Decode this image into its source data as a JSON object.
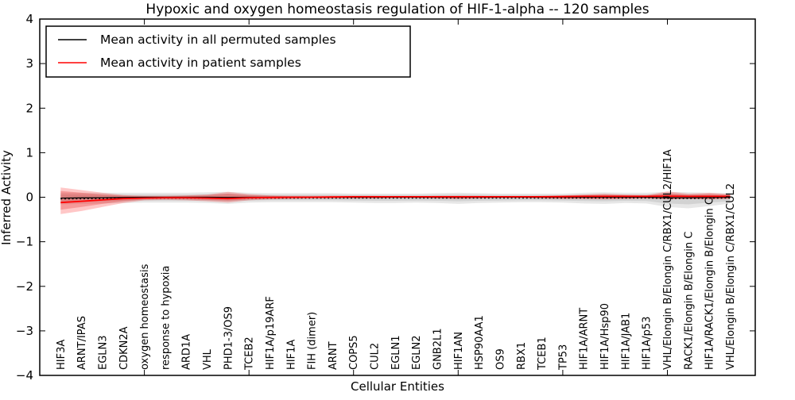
{
  "chart_data": {
    "type": "line",
    "title": "Hypoxic and oxygen homeostasis regulation of HIF-1-alpha -- 120 samples",
    "xlabel": "Cellular Entities",
    "ylabel": "Inferred Activity",
    "ylim": [
      -4,
      4
    ],
    "xlim": [
      0,
      34.2
    ],
    "grid": false,
    "y_tick_labels": [
      "4",
      "3",
      "2",
      "1",
      "0",
      "−1",
      "−2",
      "−3",
      "−4"
    ],
    "y_tick_values": [
      4,
      3,
      2,
      1,
      0,
      -1,
      -2,
      -3,
      -4
    ],
    "x_tick_positions": [
      5,
      10,
      15,
      20,
      25,
      30
    ],
    "legend": {
      "position": "upper left",
      "entries": [
        {
          "label": "Mean activity in all permuted samples",
          "color": "#000000"
        },
        {
          "label": "Mean activity in patient samples",
          "color": "#ff0000"
        }
      ]
    },
    "categories": [
      "HIF3A",
      "ARNT/IPAS",
      "EGLN3",
      "CDKN2A",
      "oxygen homeostasis",
      "response to hypoxia",
      "ARD1A",
      "VHL",
      "PHD1-3/OS9",
      "TCEB2",
      "HIF1A/p19ARF",
      "HIF1A",
      "FIH (dimer)",
      "ARNT",
      "COPS5",
      "CUL2",
      "EGLN1",
      "EGLN2",
      "GNB2L1",
      "HIF1AN",
      "HSP90AA1",
      "OS9",
      "RBX1",
      "TCEB1",
      "TP53",
      "HIF1A/ARNT",
      "HIF1A/Hsp90",
      "HIF1A/JAB1",
      "HIF1A/p53",
      "VHL/Elongin B/Elongin C/RBX1/CUL2/HIF1A",
      "RACK1/Elongin B/Elongin C",
      "HIF1A/RACK1/Elongin B/Elongin C",
      "VHL/Elongin B/Elongin C/RBX1/CUL2"
    ],
    "series": [
      {
        "name": "Mean activity in all permuted samples",
        "color": "#000000",
        "style": "solid+dotted",
        "values": [
          -0.02,
          -0.015,
          -0.01,
          -0.005,
          0,
          0,
          0,
          0,
          -0.005,
          0,
          0,
          0,
          0,
          0,
          0,
          0,
          0,
          0,
          0,
          0,
          0,
          0,
          0,
          0,
          0,
          0,
          0,
          0,
          0,
          -0.01,
          -0.01,
          -0.005,
          0
        ]
      },
      {
        "name": "Mean activity in patient samples",
        "color": "#ff0000",
        "style": "solid",
        "values": [
          -0.12,
          -0.09,
          -0.06,
          -0.03,
          -0.02,
          -0.01,
          -0.01,
          -0.02,
          -0.03,
          -0.01,
          -0.005,
          0,
          0,
          0.005,
          0.01,
          0.01,
          0.01,
          0.01,
          0.01,
          0.01,
          0.01,
          0.01,
          0.01,
          0.01,
          0.015,
          0.02,
          0.02,
          0.02,
          0.02,
          0.025,
          0.02,
          0.02,
          0.02
        ]
      }
    ],
    "bands": [
      {
        "name": "permuted-outer-band",
        "color": "#555555",
        "opacity": 0.14,
        "top": [
          0.1,
          0.1,
          0.1,
          0.1,
          0.1,
          0.1,
          0.1,
          0.11,
          0.12,
          0.1,
          0.09,
          0.09,
          0.09,
          0.09,
          0.08,
          0.08,
          0.08,
          0.08,
          0.09,
          0.1,
          0.09,
          0.08,
          0.08,
          0.08,
          0.08,
          0.1,
          0.11,
          0.1,
          0.1,
          0.12,
          0.11,
          0.1,
          0.09
        ],
        "bottom": [
          -0.16,
          -0.15,
          -0.14,
          -0.13,
          -0.12,
          -0.12,
          -0.12,
          -0.13,
          -0.15,
          -0.12,
          -0.11,
          -0.11,
          -0.11,
          -0.11,
          -0.12,
          -0.13,
          -0.13,
          -0.12,
          -0.13,
          -0.15,
          -0.13,
          -0.12,
          -0.11,
          -0.11,
          -0.12,
          -0.14,
          -0.15,
          -0.13,
          -0.14,
          -0.22,
          -0.25,
          -0.2,
          -0.14
        ]
      },
      {
        "name": "permuted-inner-band",
        "color": "#555555",
        "opacity": 0.14,
        "top": [
          0.06,
          0.06,
          0.06,
          0.06,
          0.06,
          0.06,
          0.06,
          0.07,
          0.08,
          0.06,
          0.055,
          0.055,
          0.055,
          0.055,
          0.05,
          0.05,
          0.05,
          0.05,
          0.055,
          0.06,
          0.055,
          0.05,
          0.05,
          0.05,
          0.05,
          0.06,
          0.07,
          0.06,
          0.06,
          0.08,
          0.07,
          0.06,
          0.055
        ],
        "bottom": [
          -0.1,
          -0.09,
          -0.085,
          -0.08,
          -0.075,
          -0.075,
          -0.075,
          -0.08,
          -0.09,
          -0.075,
          -0.07,
          -0.07,
          -0.07,
          -0.07,
          -0.075,
          -0.08,
          -0.08,
          -0.075,
          -0.08,
          -0.09,
          -0.08,
          -0.075,
          -0.07,
          -0.07,
          -0.075,
          -0.085,
          -0.09,
          -0.08,
          -0.085,
          -0.14,
          -0.16,
          -0.12,
          -0.09
        ]
      },
      {
        "name": "patient-outer-band",
        "color": "#ff0000",
        "opacity": 0.22,
        "top": [
          0.22,
          0.16,
          0.1,
          0.05,
          0.03,
          0.03,
          0.04,
          0.06,
          0.12,
          0.07,
          0.04,
          0.03,
          0.03,
          0.03,
          0.03,
          0.03,
          0.02,
          0.02,
          0.03,
          0.03,
          0.03,
          0.02,
          0.02,
          0.03,
          0.04,
          0.06,
          0.08,
          0.06,
          0.05,
          0.13,
          0.08,
          0.1,
          0.07
        ],
        "bottom": [
          -0.38,
          -0.31,
          -0.22,
          -0.13,
          -0.07,
          -0.06,
          -0.07,
          -0.09,
          -0.12,
          -0.07,
          -0.05,
          -0.04,
          -0.03,
          -0.03,
          -0.03,
          -0.03,
          -0.02,
          -0.02,
          -0.03,
          -0.04,
          -0.03,
          -0.02,
          -0.02,
          -0.03,
          -0.04,
          -0.04,
          -0.05,
          -0.04,
          -0.03,
          -0.05,
          -0.04,
          -0.05,
          -0.04
        ]
      },
      {
        "name": "patient-inner-band",
        "color": "#e03030",
        "opacity": 0.3,
        "top": [
          0.14,
          0.1,
          0.06,
          0.03,
          0.02,
          0.02,
          0.03,
          0.04,
          0.08,
          0.04,
          0.03,
          0.02,
          0.02,
          0.02,
          0.02,
          0.02,
          0.015,
          0.015,
          0.02,
          0.02,
          0.02,
          0.015,
          0.015,
          0.02,
          0.03,
          0.04,
          0.05,
          0.04,
          0.03,
          0.09,
          0.05,
          0.07,
          0.05
        ],
        "bottom": [
          -0.28,
          -0.22,
          -0.15,
          -0.09,
          -0.05,
          -0.04,
          -0.05,
          -0.06,
          -0.08,
          -0.05,
          -0.035,
          -0.03,
          -0.02,
          -0.02,
          -0.02,
          -0.02,
          -0.015,
          -0.015,
          -0.02,
          -0.03,
          -0.02,
          -0.015,
          -0.015,
          -0.02,
          -0.03,
          -0.03,
          -0.035,
          -0.03,
          -0.02,
          -0.035,
          -0.03,
          -0.035,
          -0.03
        ]
      }
    ]
  }
}
